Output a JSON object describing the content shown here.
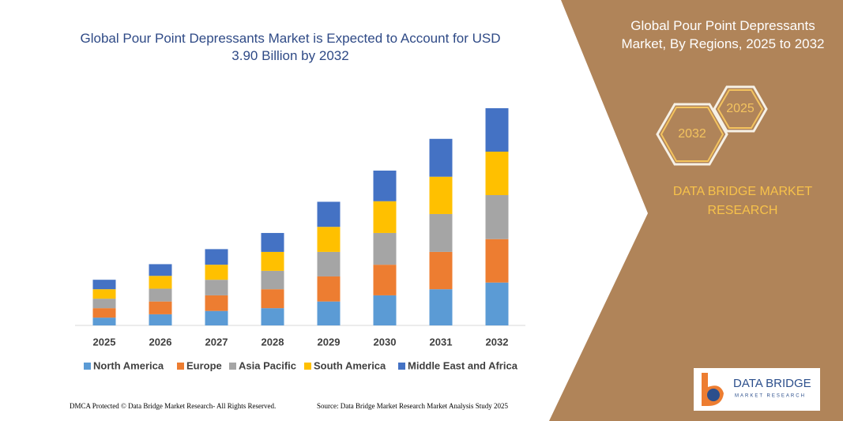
{
  "chart_data": {
    "type": "stacked-bar",
    "title": "Global Pour Point Depressants Market is Expected to Account for USD 3.90 Billion by 2032",
    "categories": [
      "2025",
      "2026",
      "2027",
      "2028",
      "2029",
      "2030",
      "2031",
      "2032"
    ],
    "series": [
      {
        "name": "North America",
        "color": "#5b9bd5",
        "values": [
          0.14,
          0.2,
          0.26,
          0.31,
          0.43,
          0.54,
          0.65,
          0.77
        ]
      },
      {
        "name": "Europe",
        "color": "#ed7d31",
        "values": [
          0.17,
          0.23,
          0.28,
          0.34,
          0.45,
          0.55,
          0.67,
          0.78
        ]
      },
      {
        "name": "Asia Pacific",
        "color": "#a5a5a5",
        "values": [
          0.17,
          0.23,
          0.28,
          0.33,
          0.44,
          0.57,
          0.68,
          0.79
        ]
      },
      {
        "name": "South America",
        "color": "#ffc000",
        "values": [
          0.17,
          0.23,
          0.27,
          0.34,
          0.45,
          0.57,
          0.67,
          0.78
        ]
      },
      {
        "name": "Middle East and Africa",
        "color": "#4472c4",
        "values": [
          0.17,
          0.21,
          0.28,
          0.34,
          0.45,
          0.55,
          0.68,
          0.78
        ]
      }
    ]
  },
  "panel": {
    "title": "Global Pour Point Depressants Market, By Regions, 2025 to 2032",
    "hex_small": "2025",
    "hex_large": "2032",
    "brand": "DATA BRIDGE MARKET RESEARCH"
  },
  "logo": {
    "name": "DATA BRIDGE",
    "tagline": "MARKET RESEARCH"
  },
  "footer": {
    "left": "DMCA Protected © Data Bridge Market Research-  All Rights Reserved.",
    "right": "Source: Data Bridge Market Research  Market Analysis Study 2025"
  }
}
